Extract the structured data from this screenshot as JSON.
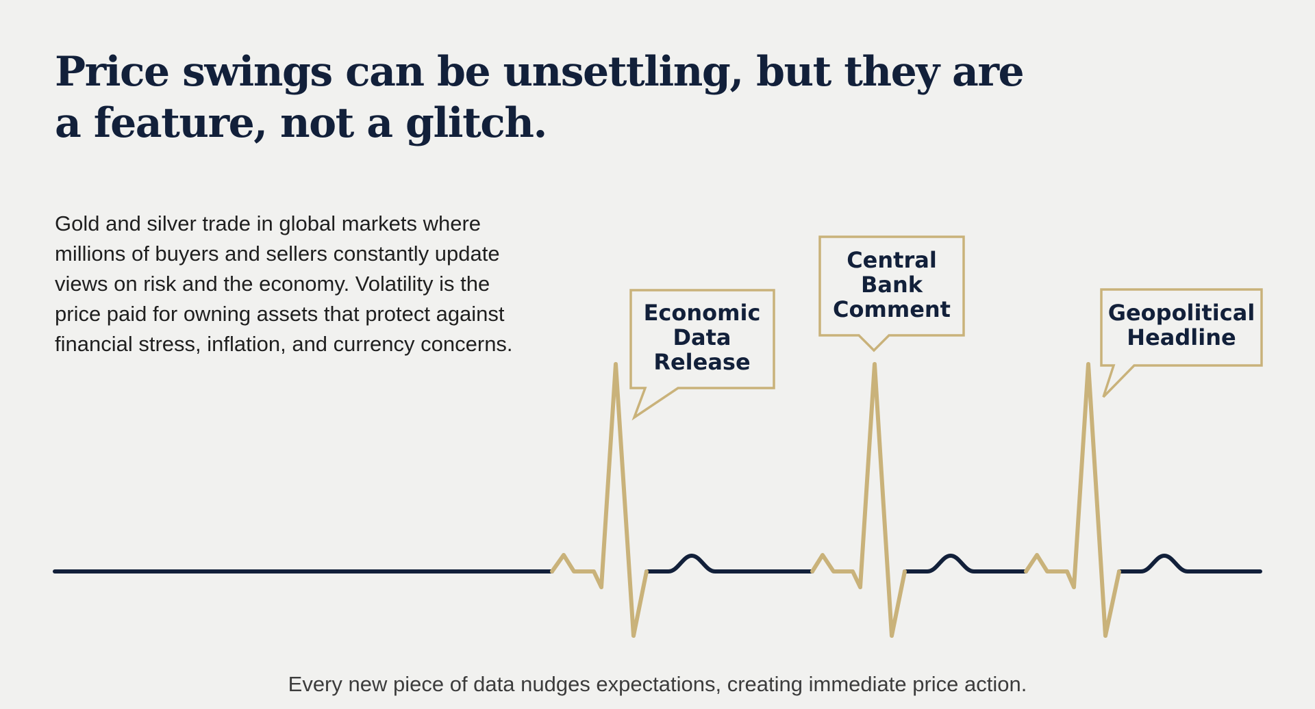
{
  "headline": {
    "line1": "Price swings can be unsettling, but they are",
    "line2": "a feature, not a glitch."
  },
  "body": {
    "lines": [
      "Gold and silver trade in global markets where",
      "millions of buyers and sellers constantly update",
      "views on risk and the economy. Volatility is the",
      "price paid for owning assets that protect against",
      "financial stress, inflation, and currency concerns."
    ]
  },
  "callouts": [
    {
      "lines": [
        "Economic",
        "Data",
        "Release"
      ]
    },
    {
      "lines": [
        "Central",
        "Bank",
        "Comment"
      ]
    },
    {
      "lines": [
        "Geopolitical",
        "Headline"
      ]
    }
  ],
  "caption": "Every new piece of data nudges expectations, creating immediate price action.",
  "colors": {
    "background": "#f1f1ef",
    "navy": "#12203a",
    "gold": "#c9b27a"
  }
}
